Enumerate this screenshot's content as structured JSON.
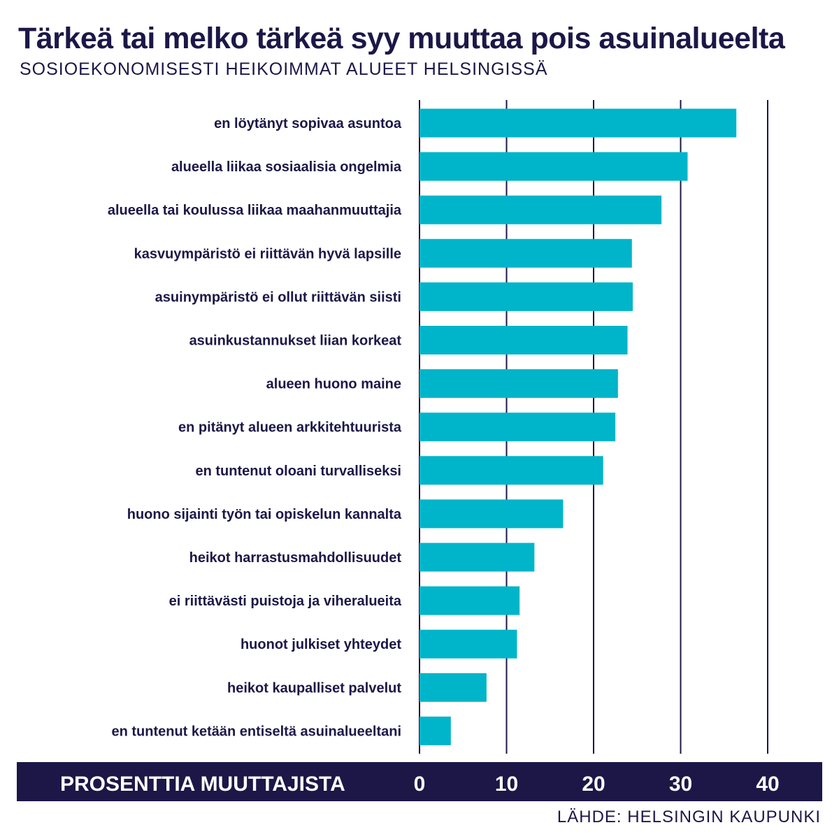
{
  "header": {
    "title": "Tärkeä tai melko tärkeä syy muuttaa pois asuinalueelta",
    "subtitle": "SOSIOEKONOMISESTI HEIKOIMMAT ALUEET HELSINGISSÄ"
  },
  "footer": {
    "source": "LÄHDE: HELSINGIN KAUPUNKI"
  },
  "colors": {
    "bar": "#00b5c9",
    "text": "#1c1747",
    "axis_band": "#1c1747",
    "gridline": "#1c1747"
  },
  "chart_data": {
    "type": "bar",
    "orientation": "horizontal",
    "title": "Tärkeä tai melko tärkeä syy muuttaa pois asuinalueelta",
    "subtitle": "SOSIOEKONOMISESTI HEIKOIMMAT ALUEET HELSINGISSÄ",
    "xlabel": "PROSENTTIA MUUTTAJISTA",
    "xlim": [
      0,
      40
    ],
    "xticks": [
      0,
      10,
      20,
      30,
      40
    ],
    "grid": true,
    "categories": [
      "en löytänyt sopivaa asuntoa",
      "alueella liikaa sosiaalisia ongelmia",
      "alueella tai koulussa liikaa maahanmuuttajia",
      "kasvuympäristö ei riittävän hyvä lapsille",
      "asuinympäristö ei ollut riittävän siisti",
      "asuinkustannukset liian korkeat",
      "alueen huono maine",
      "en pitänyt alueen arkkitehtuurista",
      "en tuntenut oloani turvalliseksi",
      "huono sijainti työn tai opiskelun kannalta",
      "heikot harrastusmahdollisuudet",
      "ei riittävästi puistoja ja viheralueita",
      "huonot julkiset yhteydet",
      "heikot kaupalliset palvelut",
      "en tuntenut ketään entiseltä asuinalueeltani"
    ],
    "values": [
      36.4,
      30.8,
      27.8,
      24.4,
      24.5,
      23.9,
      22.8,
      22.5,
      21.1,
      16.5,
      13.2,
      11.5,
      11.2,
      7.7,
      3.6
    ]
  }
}
